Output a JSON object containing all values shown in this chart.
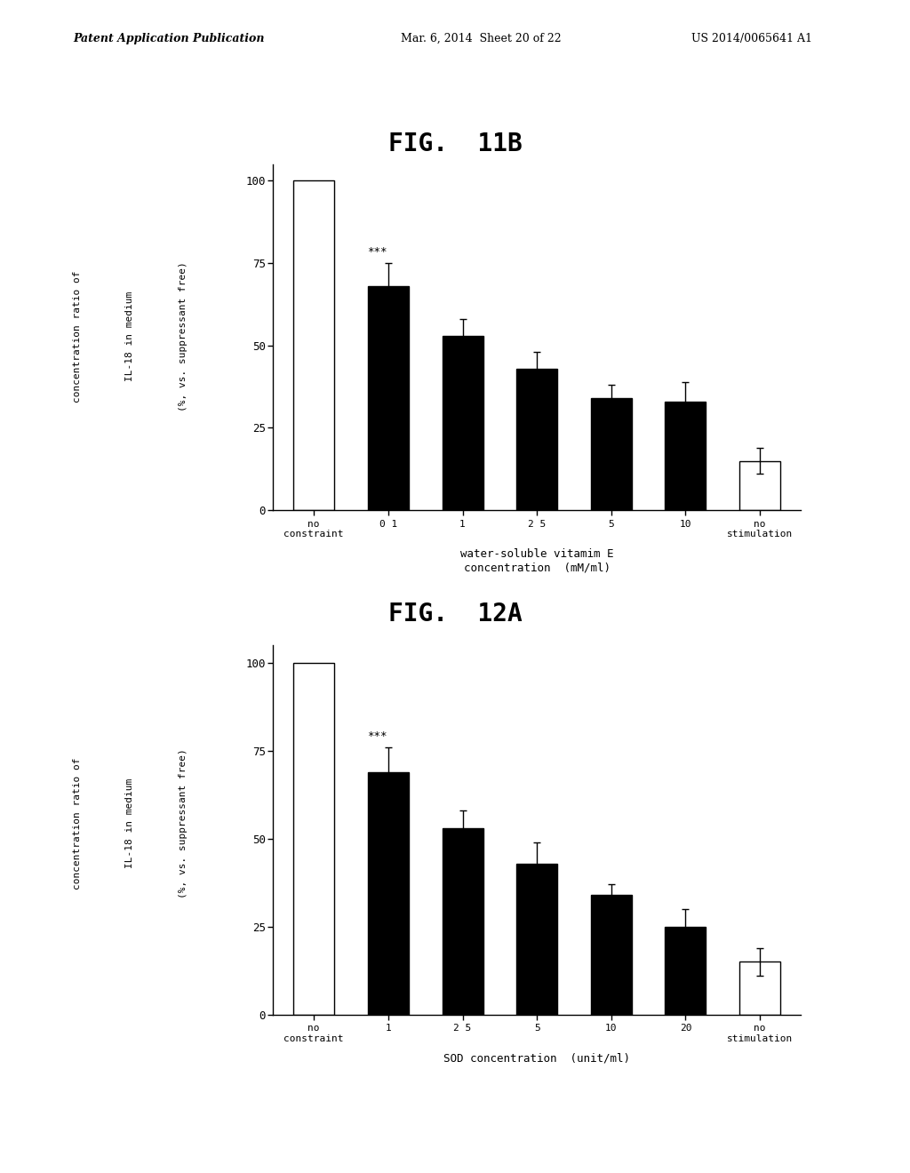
{
  "fig11b": {
    "title": "FIG.  11B",
    "bars": [
      {
        "label": "no\nconstraint",
        "value": 100,
        "error": 0,
        "color": "white",
        "annotation": null
      },
      {
        "label": "0 1",
        "value": 68,
        "error": 7,
        "color": "black",
        "annotation": "***"
      },
      {
        "label": "1",
        "value": 53,
        "error": 5,
        "color": "black",
        "annotation": null
      },
      {
        "label": "2 5",
        "value": 43,
        "error": 5,
        "color": "black",
        "annotation": null
      },
      {
        "label": "5",
        "value": 34,
        "error": 4,
        "color": "black",
        "annotation": null
      },
      {
        "label": "10",
        "value": 33,
        "error": 6,
        "color": "black",
        "annotation": null
      },
      {
        "label": "no\nstimulation",
        "value": 15,
        "error": 4,
        "color": "white",
        "annotation": null
      }
    ],
    "ylabel_lines": [
      "concentration ratio of",
      "IL-18 in medium",
      "(%, vs. suppressant free)"
    ],
    "xlabel": "water-soluble vitamim E\nconcentration  (mM/ml)",
    "ylim": [
      0,
      105
    ],
    "yticks": [
      0,
      25,
      50,
      75,
      100
    ]
  },
  "fig12a": {
    "title": "FIG.  12A",
    "bars": [
      {
        "label": "no\nconstraint",
        "value": 100,
        "error": 0,
        "color": "white",
        "annotation": null
      },
      {
        "label": "1",
        "value": 69,
        "error": 7,
        "color": "black",
        "annotation": "***"
      },
      {
        "label": "2 5",
        "value": 53,
        "error": 5,
        "color": "black",
        "annotation": null
      },
      {
        "label": "5",
        "value": 43,
        "error": 6,
        "color": "black",
        "annotation": null
      },
      {
        "label": "10",
        "value": 34,
        "error": 3,
        "color": "black",
        "annotation": null
      },
      {
        "label": "20",
        "value": 25,
        "error": 5,
        "color": "black",
        "annotation": null
      },
      {
        "label": "no\nstimulation",
        "value": 15,
        "error": 4,
        "color": "white",
        "annotation": null
      }
    ],
    "ylabel_lines": [
      "concentration ratio of",
      "IL-18 in medium",
      "(%, vs. suppressant free)"
    ],
    "xlabel": "SOD concentration  (unit/ml)",
    "ylim": [
      0,
      105
    ],
    "yticks": [
      0,
      25,
      50,
      75,
      100
    ]
  },
  "header_left": "Patent Application Publication",
  "header_mid": "Mar. 6, 2014  Sheet 20 of 22",
  "header_right": "US 2014/0065641 A1",
  "bg_color": "#ffffff",
  "bar_edgecolor": "black",
  "bar_linewidth": 1.0,
  "bar_width": 0.55
}
